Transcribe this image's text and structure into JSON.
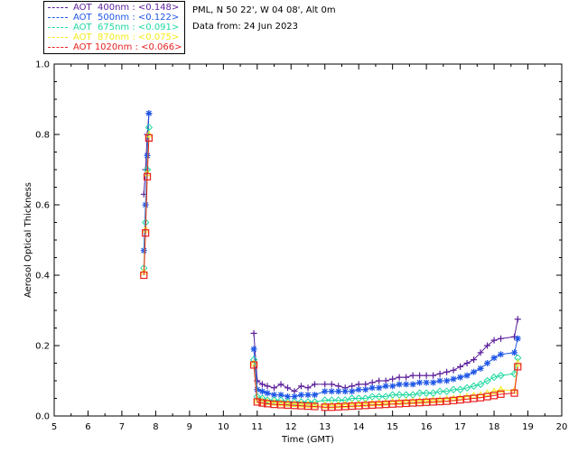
{
  "header": {
    "site": "PML, N 50 22', W 04 08', Alt 0m",
    "date": "Data from: 24 Jun 2023"
  },
  "legend": [
    {
      "label": "AOT  400nm : <0.148>",
      "color": "#5b1f9a"
    },
    {
      "label": "AOT  500nm : <0.122>",
      "color": "#1f56e6"
    },
    {
      "label": "AOT  675nm : <0.091>",
      "color": "#20d8a0"
    },
    {
      "label": "AOT  870nm : <0.075>",
      "color": "#f2ea1c"
    },
    {
      "label": "AOT 1020nm : <0.066>",
      "color": "#e82020"
    }
  ],
  "chart_data": {
    "type": "line",
    "xlabel": "Time (GMT)",
    "ylabel": "Aerosol Optical Thickness",
    "xlim": [
      5,
      20
    ],
    "ylim": [
      0,
      1.0
    ],
    "xticks": [
      "5",
      "6",
      "7",
      "8",
      "9",
      "10",
      "11",
      "12",
      "13",
      "14",
      "15",
      "16",
      "17",
      "18",
      "19",
      "20"
    ],
    "yticks": [
      "0.0",
      "0.2",
      "0.4",
      "0.6",
      "0.8",
      "1.0"
    ],
    "series": [
      {
        "name": "AOT 400nm",
        "color": "#5b1f9a",
        "marker": "plus",
        "x": [
          7.65,
          7.7,
          7.75,
          7.8,
          10.9,
          11.0,
          11.15,
          11.3,
          11.5,
          11.7,
          11.9,
          12.1,
          12.3,
          12.5,
          12.7,
          13.0,
          13.2,
          13.4,
          13.6,
          13.8,
          14.0,
          14.2,
          14.4,
          14.6,
          14.8,
          15.0,
          15.2,
          15.4,
          15.6,
          15.8,
          16.0,
          16.2,
          16.4,
          16.6,
          16.8,
          17.0,
          17.2,
          17.4,
          17.6,
          17.8,
          18.0,
          18.2,
          18.6,
          18.7
        ],
        "y": [
          0.63,
          0.7,
          0.8,
          0.86,
          0.235,
          0.1,
          0.09,
          0.085,
          0.08,
          0.09,
          0.08,
          0.07,
          0.085,
          0.08,
          0.09,
          0.09,
          0.09,
          0.085,
          0.08,
          0.085,
          0.09,
          0.09,
          0.095,
          0.1,
          0.1,
          0.105,
          0.11,
          0.11,
          0.115,
          0.115,
          0.115,
          0.115,
          0.12,
          0.125,
          0.13,
          0.14,
          0.15,
          0.16,
          0.18,
          0.2,
          0.215,
          0.22,
          0.225,
          0.275
        ]
      },
      {
        "name": "AOT 500nm",
        "color": "#1f56e6",
        "marker": "star",
        "x": [
          7.65,
          7.7,
          7.75,
          7.8,
          10.9,
          11.0,
          11.15,
          11.3,
          11.5,
          11.7,
          11.9,
          12.1,
          12.3,
          12.5,
          12.7,
          13.0,
          13.2,
          13.4,
          13.6,
          13.8,
          14.0,
          14.2,
          14.4,
          14.6,
          14.8,
          15.0,
          15.2,
          15.4,
          15.6,
          15.8,
          16.0,
          16.2,
          16.4,
          16.6,
          16.8,
          17.0,
          17.2,
          17.4,
          17.6,
          17.8,
          18.0,
          18.2,
          18.6,
          18.7
        ],
        "y": [
          0.47,
          0.6,
          0.74,
          0.86,
          0.19,
          0.075,
          0.07,
          0.065,
          0.06,
          0.06,
          0.055,
          0.055,
          0.06,
          0.06,
          0.06,
          0.07,
          0.07,
          0.07,
          0.07,
          0.07,
          0.075,
          0.075,
          0.08,
          0.08,
          0.085,
          0.085,
          0.09,
          0.09,
          0.09,
          0.095,
          0.095,
          0.095,
          0.1,
          0.1,
          0.105,
          0.11,
          0.115,
          0.125,
          0.135,
          0.15,
          0.165,
          0.175,
          0.18,
          0.22
        ]
      },
      {
        "name": "AOT 675nm",
        "color": "#20d8a0",
        "marker": "diamond",
        "x": [
          7.65,
          7.7,
          7.75,
          7.8,
          10.9,
          11.0,
          11.15,
          11.3,
          11.5,
          11.7,
          11.9,
          12.1,
          12.3,
          12.5,
          12.7,
          13.0,
          13.2,
          13.4,
          13.6,
          13.8,
          14.0,
          14.2,
          14.4,
          14.6,
          14.8,
          15.0,
          15.2,
          15.4,
          15.6,
          15.8,
          16.0,
          16.2,
          16.4,
          16.6,
          16.8,
          17.0,
          17.2,
          17.4,
          17.6,
          17.8,
          18.0,
          18.2,
          18.6,
          18.7
        ],
        "y": [
          0.42,
          0.55,
          0.7,
          0.82,
          0.16,
          0.055,
          0.05,
          0.045,
          0.045,
          0.045,
          0.04,
          0.04,
          0.04,
          0.04,
          0.04,
          0.045,
          0.045,
          0.045,
          0.045,
          0.05,
          0.05,
          0.05,
          0.055,
          0.055,
          0.055,
          0.06,
          0.06,
          0.06,
          0.06,
          0.065,
          0.065,
          0.065,
          0.07,
          0.07,
          0.075,
          0.075,
          0.08,
          0.085,
          0.09,
          0.1,
          0.11,
          0.115,
          0.12,
          0.165
        ]
      },
      {
        "name": "AOT 870nm",
        "color": "#f2ea1c",
        "marker": "triangle",
        "x": [
          7.65,
          7.7,
          7.75,
          7.8,
          10.9,
          11.0,
          11.15,
          11.3,
          11.5,
          11.7,
          11.9,
          12.1,
          12.3,
          12.5,
          12.7,
          13.0,
          13.2,
          13.4,
          13.6,
          13.8,
          14.0,
          14.2,
          14.4,
          14.6,
          14.8,
          15.0,
          15.2,
          15.4,
          15.6,
          15.8,
          16.0,
          16.2,
          16.4,
          16.6,
          16.8,
          17.0,
          17.2,
          17.4,
          17.6,
          17.8,
          18.0,
          18.2,
          18.6,
          18.7
        ],
        "y": [
          0.41,
          0.53,
          0.69,
          0.8,
          0.15,
          0.045,
          0.042,
          0.04,
          0.038,
          0.036,
          0.035,
          0.034,
          0.033,
          0.032,
          0.031,
          0.03,
          0.03,
          0.031,
          0.032,
          0.033,
          0.034,
          0.035,
          0.036,
          0.037,
          0.038,
          0.04,
          0.04,
          0.041,
          0.042,
          0.043,
          0.044,
          0.045,
          0.046,
          0.048,
          0.05,
          0.052,
          0.055,
          0.058,
          0.06,
          0.065,
          0.07,
          0.075,
          0.072,
          0.15
        ]
      },
      {
        "name": "AOT 1020nm",
        "color": "#e82020",
        "marker": "square",
        "x": [
          7.65,
          7.7,
          7.75,
          7.8,
          10.9,
          11.0,
          11.15,
          11.3,
          11.5,
          11.7,
          11.9,
          12.1,
          12.3,
          12.5,
          12.7,
          13.0,
          13.2,
          13.4,
          13.6,
          13.8,
          14.0,
          14.2,
          14.4,
          14.6,
          14.8,
          15.0,
          15.2,
          15.4,
          15.6,
          15.8,
          16.0,
          16.2,
          16.4,
          16.6,
          16.8,
          17.0,
          17.2,
          17.4,
          17.6,
          17.8,
          18.0,
          18.2,
          18.6,
          18.7
        ],
        "y": [
          0.4,
          0.52,
          0.68,
          0.79,
          0.145,
          0.04,
          0.037,
          0.035,
          0.033,
          0.032,
          0.031,
          0.03,
          0.029,
          0.028,
          0.027,
          0.025,
          0.025,
          0.026,
          0.027,
          0.028,
          0.029,
          0.03,
          0.031,
          0.032,
          0.033,
          0.034,
          0.035,
          0.036,
          0.037,
          0.038,
          0.039,
          0.04,
          0.041,
          0.042,
          0.044,
          0.046,
          0.048,
          0.05,
          0.052,
          0.055,
          0.058,
          0.062,
          0.065,
          0.14
        ]
      }
    ]
  }
}
